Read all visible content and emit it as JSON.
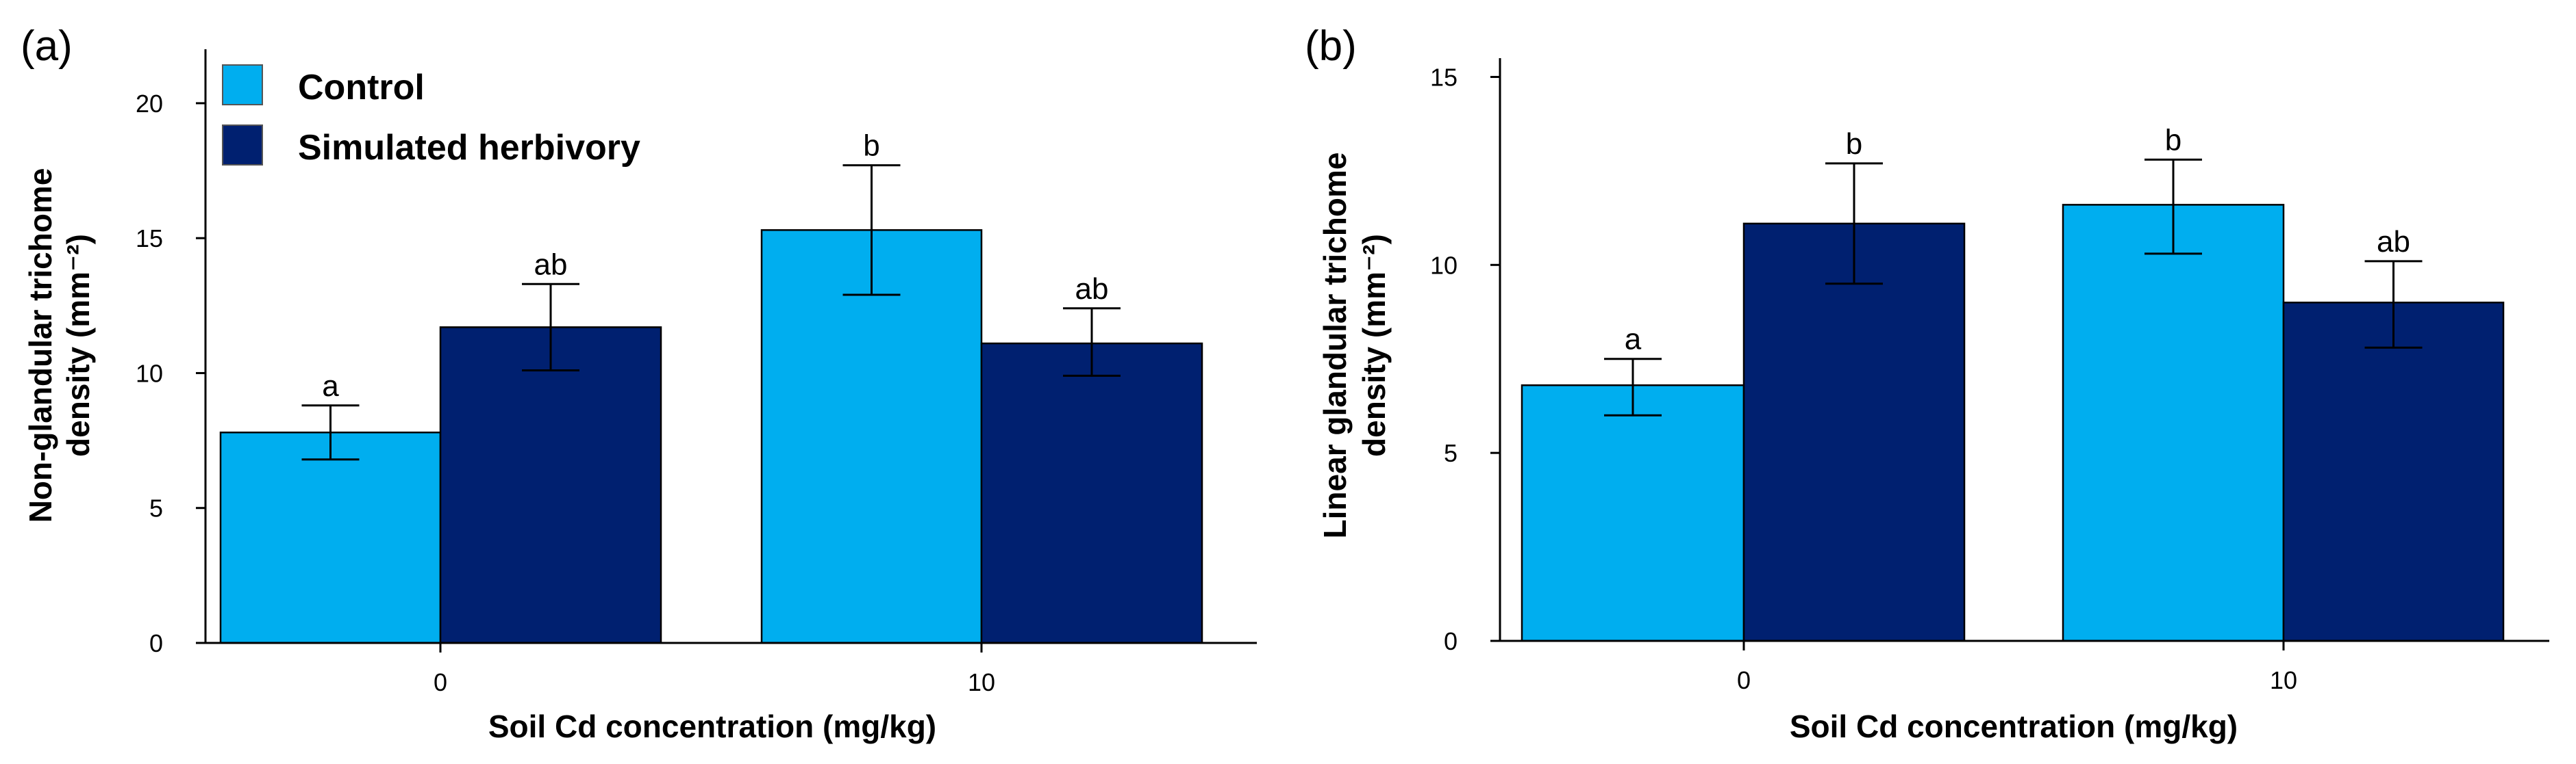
{
  "chart_data": [
    {
      "type": "bar",
      "panel_label": "(a)",
      "categories": [
        "0",
        "10"
      ],
      "xlabel": "Soil Cd concentration (mg/kg)",
      "ylabel": "Non-glandular trichome density (mm⁻²)",
      "ylabel_lines": [
        "Non-glandular trichome",
        "density (mm⁻²)"
      ],
      "ylim": [
        0,
        22
      ],
      "yticks": [
        0,
        5,
        10,
        15,
        20
      ],
      "grid": false,
      "legend": {
        "placement": "top-left",
        "entries": [
          {
            "name": "Control",
            "color": "#00AEEF"
          },
          {
            "name": "Simulated herbivory",
            "color": "#002070"
          }
        ]
      },
      "series": [
        {
          "name": "Control",
          "color": "#00AEEF",
          "values": [
            7.8,
            15.3
          ],
          "err_low": [
            6.8,
            12.9
          ],
          "err_high": [
            8.8,
            17.7
          ],
          "sig": [
            "a",
            "b"
          ]
        },
        {
          "name": "Simulated herbivory",
          "color": "#002070",
          "values": [
            11.7,
            11.1
          ],
          "err_low": [
            10.1,
            9.9
          ],
          "err_high": [
            13.3,
            12.4
          ],
          "sig": [
            "ab",
            "ab"
          ]
        }
      ]
    },
    {
      "type": "bar",
      "panel_label": "(b)",
      "categories": [
        "0",
        "10"
      ],
      "xlabel": "Soil Cd concentration (mg/kg)",
      "ylabel": "Linear glandular trichome density (mm⁻²)",
      "ylabel_lines": [
        "Linear glandular trichome",
        "density (mm⁻²)"
      ],
      "ylim": [
        0,
        15.5
      ],
      "yticks": [
        0,
        5,
        10,
        15
      ],
      "grid": false,
      "series": [
        {
          "name": "Control",
          "color": "#00AEEF",
          "values": [
            6.8,
            11.6
          ],
          "err_low": [
            6.0,
            10.3
          ],
          "err_high": [
            7.5,
            12.8
          ],
          "sig": [
            "a",
            "b"
          ]
        },
        {
          "name": "Simulated herbivory",
          "color": "#002070",
          "values": [
            11.1,
            9.0
          ],
          "err_low": [
            9.5,
            7.8
          ],
          "err_high": [
            12.7,
            10.1
          ],
          "sig": [
            "b",
            "ab"
          ]
        }
      ]
    }
  ]
}
